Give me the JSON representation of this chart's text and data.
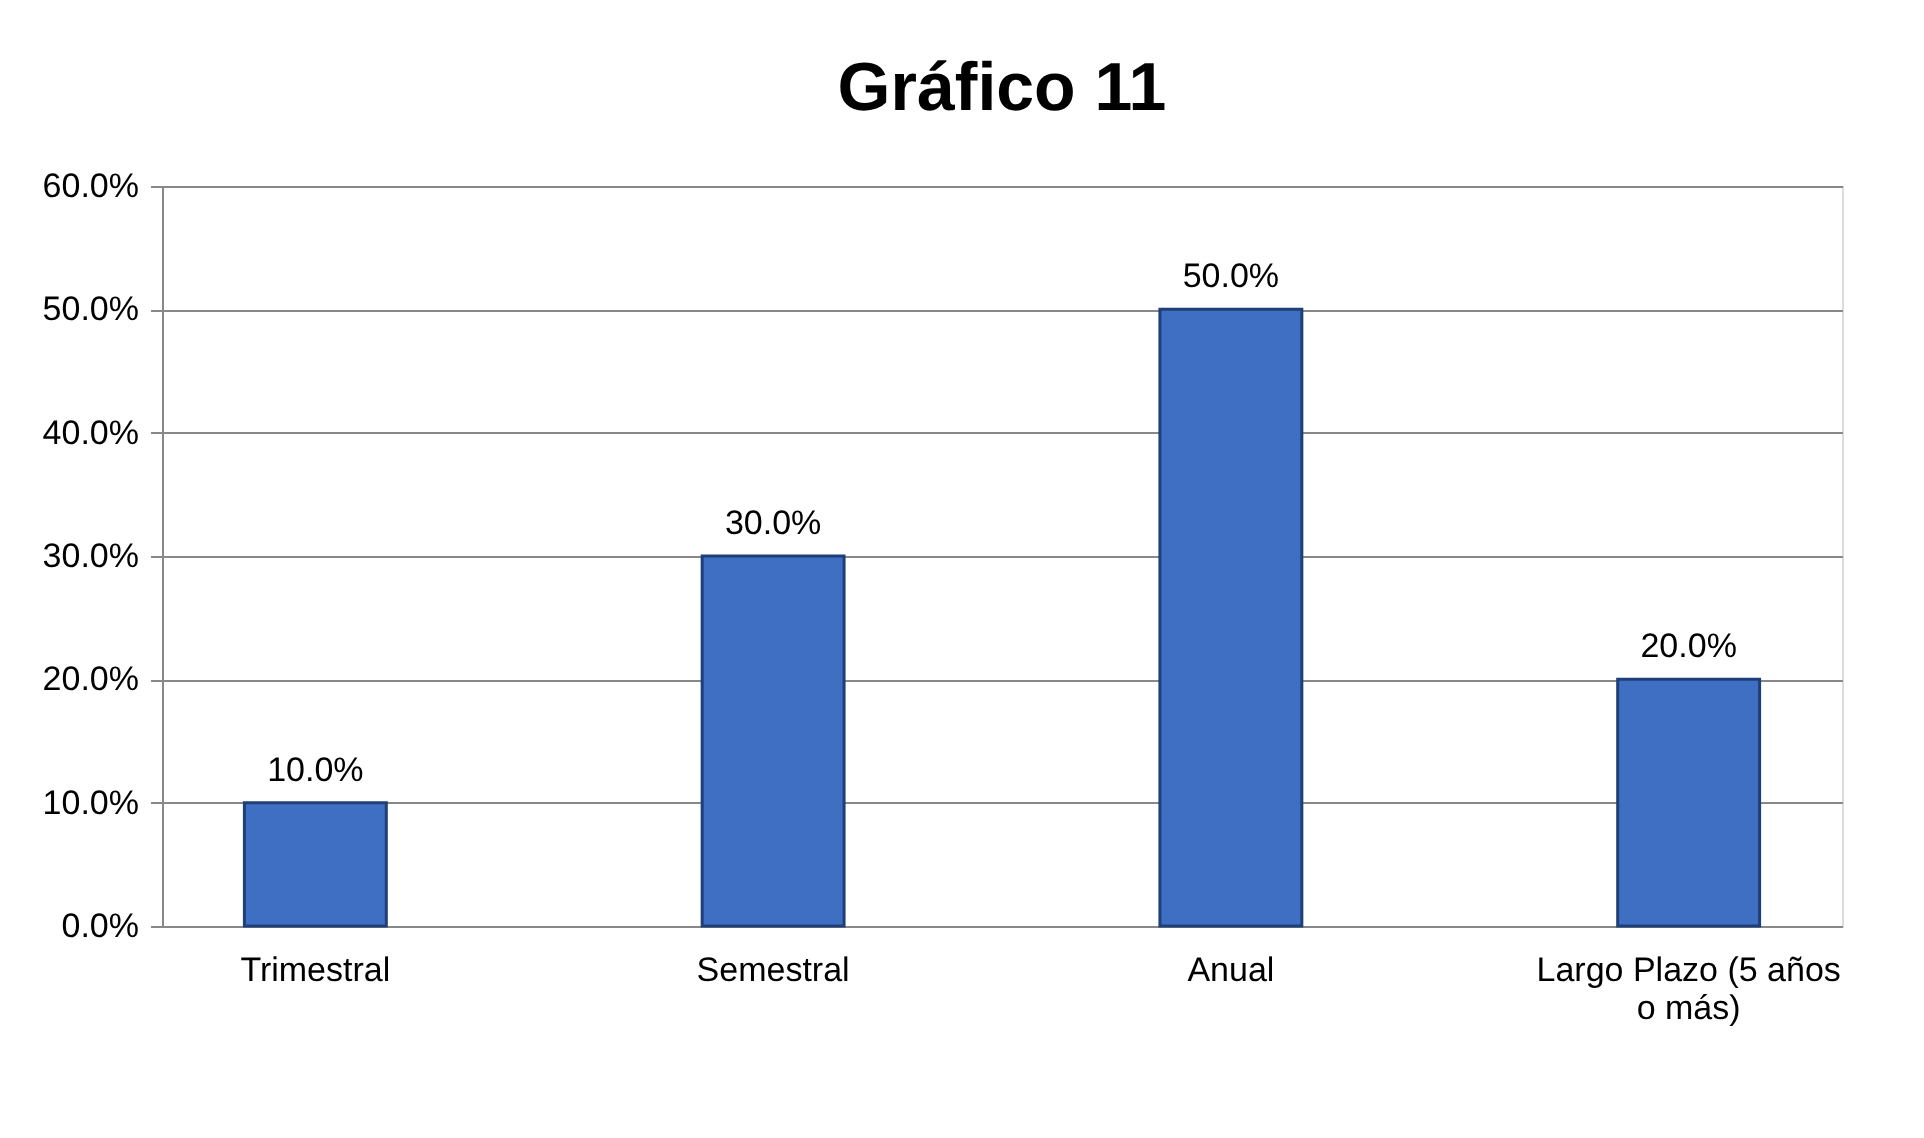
{
  "chart_data": {
    "type": "bar",
    "title": "Gráfico 11",
    "categories": [
      "Trimestral",
      "Semestral",
      "Anual",
      "Largo Plazo (5 años o más)"
    ],
    "values": [
      10,
      30,
      50,
      20
    ],
    "color": "#3f6fc2",
    "value_labels": [
      "10.0%",
      "30.0%",
      "50.0%",
      "20.0%"
    ],
    "ylim": [
      0,
      60
    ],
    "yticks": [
      {
        "value": 0,
        "label": "0.0%"
      },
      {
        "value": 10,
        "label": "10.0%"
      },
      {
        "value": 20,
        "label": "20.0%"
      },
      {
        "value": 30,
        "label": "30.0%"
      },
      {
        "value": 40,
        "label": "40.0%"
      },
      {
        "value": 50,
        "label": "50.0%"
      },
      {
        "value": 60,
        "label": "60.0%"
      }
    ],
    "grid": "y"
  }
}
